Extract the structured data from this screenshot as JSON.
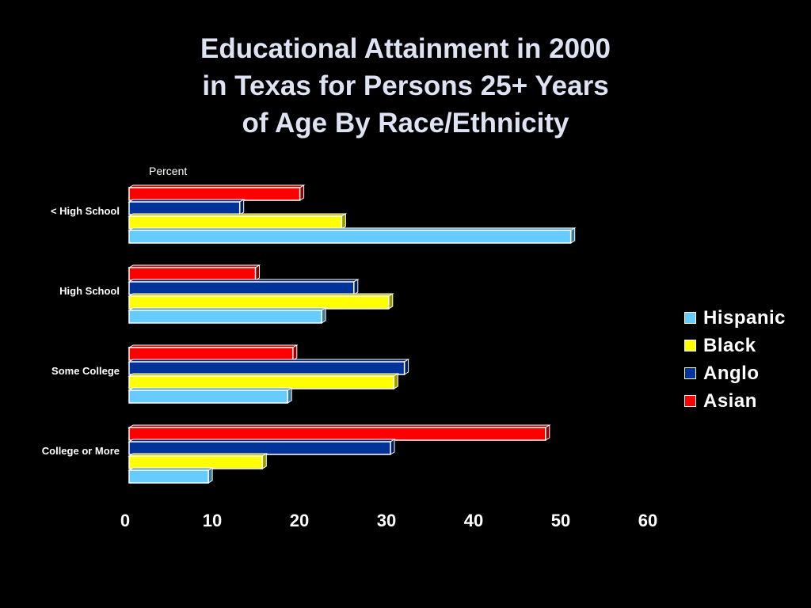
{
  "chart_data": {
    "type": "bar",
    "orientation": "horizontal",
    "title_lines": [
      "Educational Attainment in 2000",
      "in Texas for Persons 25+ Years",
      "of Age By Race/Ethnicity"
    ],
    "unit_label": "Percent",
    "categories": [
      "< High School",
      "High School",
      "Some College",
      "College or More"
    ],
    "series": [
      {
        "name": "Asian",
        "color": "#ff0000",
        "values": [
          19.6,
          14.5,
          18.8,
          47.8
        ]
      },
      {
        "name": "Anglo",
        "color": "#003399",
        "values": [
          12.7,
          25.8,
          31.6,
          30.0
        ]
      },
      {
        "name": "Black",
        "color": "#ffff00",
        "values": [
          24.4,
          29.8,
          30.4,
          15.3
        ]
      },
      {
        "name": "Hispanic",
        "color": "#66ccff",
        "values": [
          50.7,
          22.1,
          18.2,
          9.1
        ]
      }
    ],
    "legend_order": [
      "Hispanic",
      "Black",
      "Anglo",
      "Asian"
    ],
    "xlim": [
      0,
      60
    ],
    "xticks": [
      0,
      10,
      20,
      30,
      40,
      50,
      60
    ],
    "grid": false,
    "legend_position": "right"
  }
}
